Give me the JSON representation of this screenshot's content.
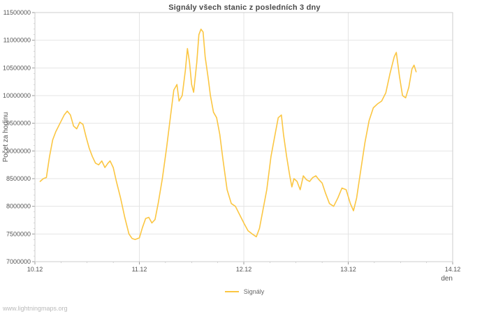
{
  "page": {
    "watermark": "www.lightningmaps.org"
  },
  "chart_data": {
    "type": "line",
    "title": "Signály všech stanic z posledních 3 dny",
    "xlabel": "den",
    "ylabel": "Počet za hodinu",
    "xlim": [
      0,
      4
    ],
    "ylim": [
      7000000,
      11500000
    ],
    "y_tick_step": 500000,
    "y_minor_step": 100000,
    "x_minor_step": 0.25,
    "grid": true,
    "legend_position": "bottom-center",
    "x_ticks": [
      {
        "pos": 0,
        "label": "10.12"
      },
      {
        "pos": 1,
        "label": "11.12"
      },
      {
        "pos": 2,
        "label": "12.12"
      },
      {
        "pos": 3,
        "label": "13.12"
      },
      {
        "pos": 4,
        "label": "14.12"
      }
    ],
    "series": [
      {
        "name": "Signály",
        "color": "#fbc642",
        "points": [
          [
            0.05,
            8450000
          ],
          [
            0.08,
            8500000
          ],
          [
            0.11,
            8520000
          ],
          [
            0.14,
            8900000
          ],
          [
            0.17,
            9200000
          ],
          [
            0.2,
            9350000
          ],
          [
            0.24,
            9500000
          ],
          [
            0.28,
            9650000
          ],
          [
            0.31,
            9720000
          ],
          [
            0.34,
            9650000
          ],
          [
            0.37,
            9450000
          ],
          [
            0.4,
            9400000
          ],
          [
            0.43,
            9520000
          ],
          [
            0.46,
            9480000
          ],
          [
            0.49,
            9250000
          ],
          [
            0.52,
            9050000
          ],
          [
            0.55,
            8900000
          ],
          [
            0.58,
            8780000
          ],
          [
            0.61,
            8750000
          ],
          [
            0.64,
            8820000
          ],
          [
            0.67,
            8700000
          ],
          [
            0.7,
            8780000
          ],
          [
            0.72,
            8820000
          ],
          [
            0.75,
            8700000
          ],
          [
            0.78,
            8450000
          ],
          [
            0.82,
            8150000
          ],
          [
            0.86,
            7800000
          ],
          [
            0.9,
            7500000
          ],
          [
            0.93,
            7420000
          ],
          [
            0.96,
            7400000
          ],
          [
            1.0,
            7430000
          ],
          [
            1.03,
            7620000
          ],
          [
            1.06,
            7780000
          ],
          [
            1.09,
            7800000
          ],
          [
            1.12,
            7700000
          ],
          [
            1.15,
            7760000
          ],
          [
            1.18,
            8050000
          ],
          [
            1.22,
            8500000
          ],
          [
            1.26,
            9050000
          ],
          [
            1.3,
            9650000
          ],
          [
            1.33,
            10100000
          ],
          [
            1.36,
            10200000
          ],
          [
            1.38,
            9900000
          ],
          [
            1.41,
            10000000
          ],
          [
            1.44,
            10450000
          ],
          [
            1.46,
            10850000
          ],
          [
            1.48,
            10600000
          ],
          [
            1.5,
            10200000
          ],
          [
            1.52,
            10060000
          ],
          [
            1.55,
            10600000
          ],
          [
            1.57,
            11100000
          ],
          [
            1.59,
            11200000
          ],
          [
            1.61,
            11150000
          ],
          [
            1.63,
            10700000
          ],
          [
            1.66,
            10300000
          ],
          [
            1.68,
            10000000
          ],
          [
            1.71,
            9700000
          ],
          [
            1.74,
            9600000
          ],
          [
            1.77,
            9300000
          ],
          [
            1.8,
            8850000
          ],
          [
            1.84,
            8300000
          ],
          [
            1.88,
            8050000
          ],
          [
            1.92,
            8000000
          ],
          [
            1.96,
            7850000
          ],
          [
            2.0,
            7700000
          ],
          [
            2.04,
            7560000
          ],
          [
            2.08,
            7500000
          ],
          [
            2.12,
            7450000
          ],
          [
            2.15,
            7600000
          ],
          [
            2.18,
            7900000
          ],
          [
            2.22,
            8300000
          ],
          [
            2.26,
            8900000
          ],
          [
            2.3,
            9300000
          ],
          [
            2.33,
            9600000
          ],
          [
            2.36,
            9650000
          ],
          [
            2.38,
            9300000
          ],
          [
            2.41,
            8900000
          ],
          [
            2.44,
            8550000
          ],
          [
            2.46,
            8350000
          ],
          [
            2.48,
            8500000
          ],
          [
            2.51,
            8450000
          ],
          [
            2.54,
            8300000
          ],
          [
            2.57,
            8550000
          ],
          [
            2.6,
            8480000
          ],
          [
            2.63,
            8450000
          ],
          [
            2.66,
            8520000
          ],
          [
            2.69,
            8550000
          ],
          [
            2.72,
            8480000
          ],
          [
            2.75,
            8420000
          ],
          [
            2.78,
            8250000
          ],
          [
            2.82,
            8050000
          ],
          [
            2.86,
            8000000
          ],
          [
            2.9,
            8150000
          ],
          [
            2.94,
            8330000
          ],
          [
            2.98,
            8300000
          ],
          [
            3.02,
            8050000
          ],
          [
            3.05,
            7920000
          ],
          [
            3.08,
            8150000
          ],
          [
            3.12,
            8650000
          ],
          [
            3.16,
            9150000
          ],
          [
            3.2,
            9550000
          ],
          [
            3.24,
            9780000
          ],
          [
            3.28,
            9850000
          ],
          [
            3.32,
            9900000
          ],
          [
            3.36,
            10050000
          ],
          [
            3.4,
            10400000
          ],
          [
            3.44,
            10700000
          ],
          [
            3.46,
            10780000
          ],
          [
            3.49,
            10350000
          ],
          [
            3.52,
            10000000
          ],
          [
            3.55,
            9960000
          ],
          [
            3.58,
            10150000
          ],
          [
            3.61,
            10480000
          ],
          [
            3.63,
            10550000
          ],
          [
            3.65,
            10430000
          ]
        ]
      }
    ]
  }
}
